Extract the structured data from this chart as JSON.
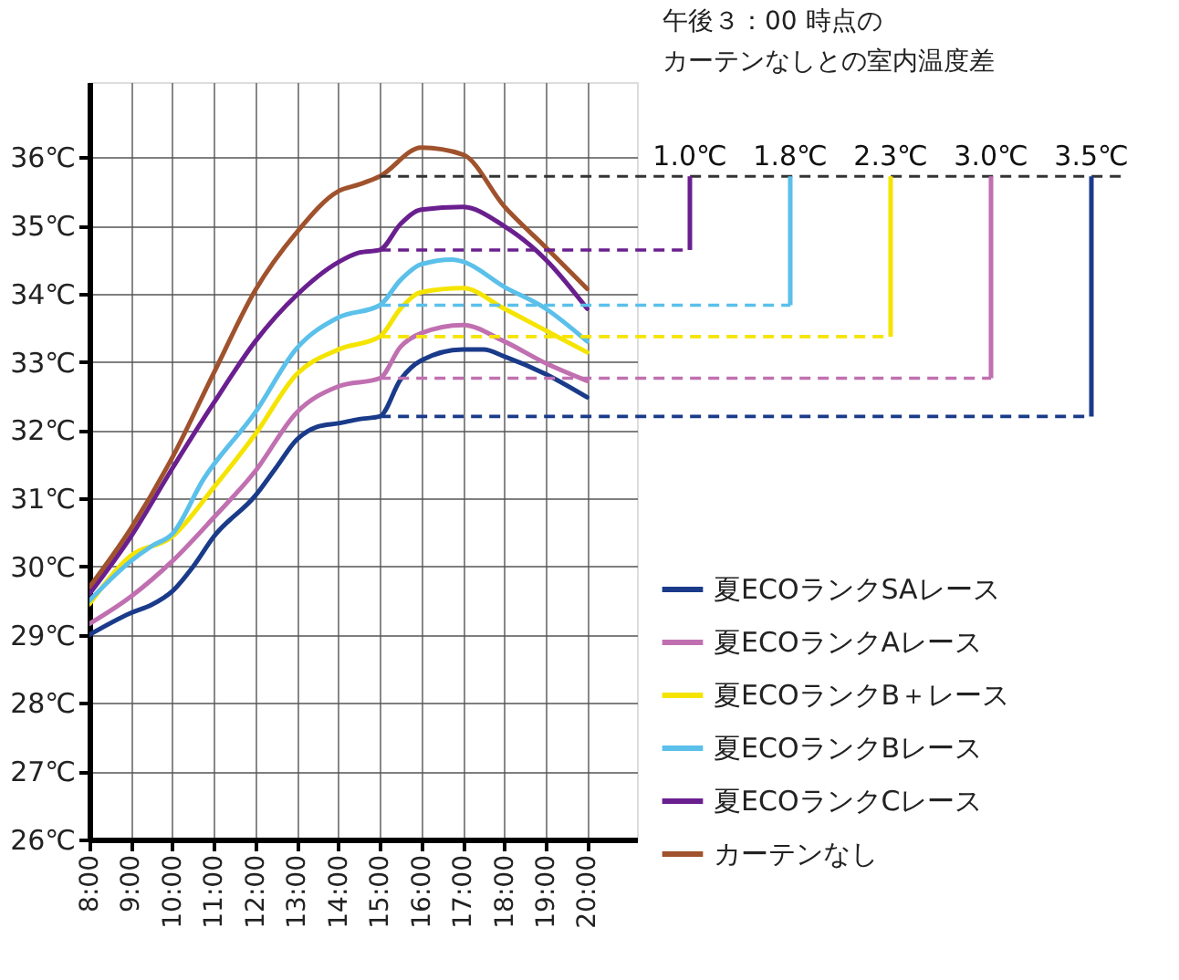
{
  "chart_data": {
    "type": "line",
    "annotations": [
      "午後３：00 時点の",
      "カーテンなしとの室内温度差"
    ],
    "xlim": [
      8,
      21.2
    ],
    "xticks": [
      {
        "value": 8,
        "label": "8:00"
      },
      {
        "value": 9,
        "label": "9:00"
      },
      {
        "value": 10,
        "label": "10:00"
      },
      {
        "value": 11,
        "label": "11:00"
      },
      {
        "value": 12,
        "label": "12:00"
      },
      {
        "value": 13,
        "label": "13:00"
      },
      {
        "value": 14,
        "label": "14:00"
      },
      {
        "value": 15,
        "label": "15:00"
      },
      {
        "value": 16,
        "label": "16:00"
      },
      {
        "value": 17,
        "label": "17:00"
      },
      {
        "value": 18,
        "label": "18:00"
      },
      {
        "value": 19,
        "label": "19:00"
      },
      {
        "value": 20,
        "label": "20:00"
      }
    ],
    "ylim": [
      26,
      37.1
    ],
    "yticks": [
      {
        "value": 26,
        "label": "26℃"
      },
      {
        "value": 27,
        "label": "27℃"
      },
      {
        "value": 28,
        "label": "28℃"
      },
      {
        "value": 29,
        "label": "29℃"
      },
      {
        "value": 30,
        "label": "30℃"
      },
      {
        "value": 31,
        "label": "31℃"
      },
      {
        "value": 32,
        "label": "32℃"
      },
      {
        "value": 33,
        "label": "33℃"
      },
      {
        "value": 34,
        "label": "34℃"
      },
      {
        "value": 35,
        "label": "35℃"
      },
      {
        "value": 36,
        "label": "36℃"
      }
    ],
    "grid": true,
    "legend": "right",
    "marker": "none",
    "line_style": "solid",
    "series": [
      {
        "name": "夏ECOランクSAレース",
        "color": "#1a3a8a",
        "x": [
          8,
          9,
          9.5,
          10,
          10.5,
          11,
          12,
          12.5,
          13,
          13.5,
          14,
          14.5,
          15,
          15.5,
          16,
          17,
          17.5,
          18,
          19,
          20
        ],
        "values": [
          29.0,
          29.32,
          29.44,
          29.64,
          30.0,
          30.44,
          31.04,
          31.45,
          31.86,
          32.05,
          32.1,
          32.16,
          32.2,
          32.74,
          33.02,
          33.18,
          33.18,
          33.08,
          32.82,
          32.48
        ]
      },
      {
        "name": "夏ECOランクAレース",
        "color": "#c070b0",
        "x": [
          8,
          9,
          10,
          11,
          12,
          13,
          14,
          15,
          15.5,
          16,
          17,
          18,
          19,
          20
        ],
        "values": [
          29.16,
          29.56,
          30.08,
          30.72,
          31.4,
          32.26,
          32.64,
          32.76,
          33.22,
          33.42,
          33.54,
          33.3,
          32.98,
          32.72
        ]
      },
      {
        "name": "夏ECOランクB＋レース",
        "color": "#f5e400",
        "x": [
          8,
          9,
          10,
          11,
          12,
          13,
          14,
          15,
          15.5,
          16,
          17,
          18,
          19,
          20
        ],
        "values": [
          29.45,
          30.16,
          30.44,
          31.16,
          31.94,
          32.82,
          33.18,
          33.37,
          33.78,
          34.02,
          34.08,
          33.78,
          33.46,
          33.14
        ]
      },
      {
        "name": "夏ECOランクBレース",
        "color": "#5bc0ea",
        "x": [
          8,
          9,
          9.5,
          10,
          10.75,
          12,
          13,
          14,
          15,
          15.5,
          16,
          16.75,
          17,
          18,
          19,
          20
        ],
        "values": [
          29.5,
          30.08,
          30.3,
          30.48,
          31.28,
          32.26,
          33.2,
          33.65,
          33.83,
          34.2,
          34.43,
          34.5,
          34.47,
          34.1,
          33.78,
          33.3
        ]
      },
      {
        "name": "夏ECOランクCレース",
        "color": "#6a1f8f",
        "x": [
          8,
          9,
          10,
          11,
          12,
          13,
          14,
          14.5,
          15,
          15.5,
          16,
          17,
          18,
          19,
          20
        ],
        "values": [
          29.6,
          30.44,
          31.44,
          32.4,
          33.3,
          33.98,
          34.46,
          34.6,
          34.64,
          35.02,
          35.23,
          35.27,
          34.99,
          34.5,
          33.78
        ]
      },
      {
        "name": "カーテンなし",
        "color": "#a0522d",
        "x": [
          8,
          9,
          10,
          11,
          12,
          13,
          14,
          14.5,
          15,
          16,
          17,
          18,
          19,
          20
        ],
        "values": [
          29.7,
          30.56,
          31.6,
          32.84,
          34.05,
          34.9,
          35.5,
          35.6,
          35.72,
          36.14,
          36.04,
          35.28,
          34.68,
          34.07
        ]
      }
    ],
    "ref_lines": [
      {
        "axis": "y",
        "value": 35.72,
        "label": null,
        "color": "#333333",
        "line_style": "dashed"
      },
      {
        "axis": "y",
        "value": 34.64,
        "label": "1.0℃",
        "color": "#6a1f8f",
        "line_style": "dashed"
      },
      {
        "axis": "y",
        "value": 33.83,
        "label": "1.8℃",
        "color": "#5bc0ea",
        "line_style": "dashed"
      },
      {
        "axis": "y",
        "value": 33.37,
        "label": "2.3℃",
        "color": "#f5e400",
        "line_style": "dashed"
      },
      {
        "axis": "y",
        "value": 32.76,
        "label": "3.0℃",
        "color": "#c070b0",
        "line_style": "dashed"
      },
      {
        "axis": "y",
        "value": 32.2,
        "label": "3.5℃",
        "color": "#1a3a8a",
        "line_style": "dashed"
      }
    ]
  }
}
